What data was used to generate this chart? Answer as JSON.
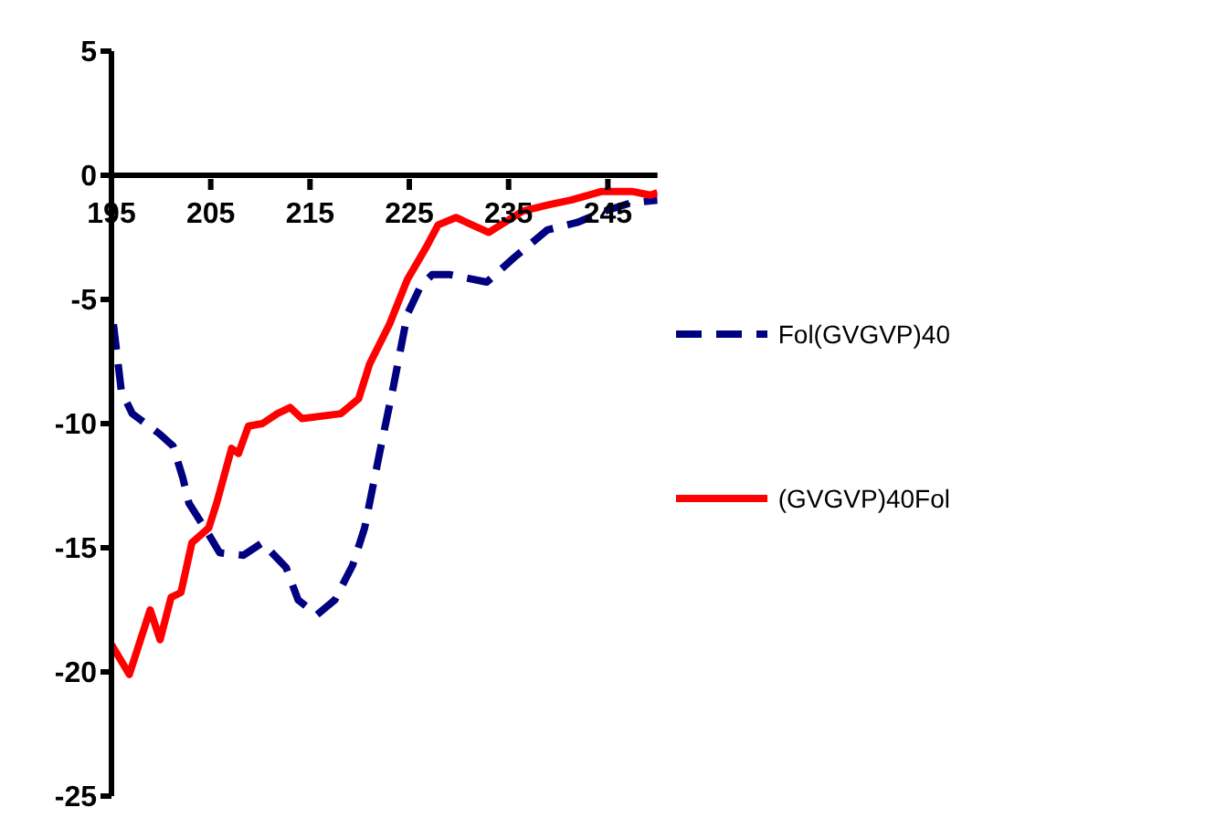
{
  "chart_data": {
    "type": "line",
    "xlim": [
      195,
      250
    ],
    "xticks": [
      195,
      205,
      215,
      225,
      235,
      245
    ],
    "ylim": [
      -25,
      5
    ],
    "yticks": [
      -25,
      -20,
      -15,
      -10,
      -5,
      0,
      5
    ],
    "legend": "right",
    "marker": "none",
    "series": [
      {
        "name": "Fol(GVGVP)40",
        "color": "#000080",
        "line_style": "dashed",
        "x": [
          195.2,
          196,
          197.1,
          199.8,
          201.2,
          202.2,
          202.8,
          204.7,
          205.9,
          208.3,
          210.2,
          212.6,
          213.8,
          215.7,
          217.5,
          219.3,
          220.5,
          222.1,
          223.4,
          224.8,
          226.1,
          227.3,
          229.1,
          232.8,
          235.6,
          238.9,
          241.9,
          245,
          247.4,
          250
        ],
        "values": [
          -6,
          -8.7,
          -9.6,
          -10.4,
          -10.9,
          -12.2,
          -13.2,
          -14.4,
          -15.2,
          -15.3,
          -14.8,
          -15.8,
          -17.1,
          -17.7,
          -17.1,
          -15.7,
          -14.2,
          -11,
          -8.5,
          -5.6,
          -4.5,
          -4,
          -4,
          -4.3,
          -3.3,
          -2.2,
          -1.9,
          -1.4,
          -1.1,
          -1
        ]
      },
      {
        "name": "(GVGVP)40Fol",
        "color": "#ff0000",
        "line_style": "solid",
        "x": [
          195,
          196.8,
          198.9,
          199.9,
          201,
          202,
          203.1,
          204.8,
          205.6,
          207.1,
          207.8,
          208.8,
          210.2,
          211.7,
          213,
          214.2,
          218.1,
          219.9,
          221,
          223,
          224.8,
          226.7,
          227.9,
          229.7,
          233,
          236.4,
          238.9,
          241.3,
          244.4,
          247.4,
          249.3,
          250
        ],
        "values": [
          -18.9,
          -20.1,
          -17.5,
          -18.7,
          -17,
          -16.8,
          -14.8,
          -14.2,
          -13.2,
          -11,
          -11.2,
          -10.1,
          -10,
          -9.6,
          -9.35,
          -9.8,
          -9.6,
          -9,
          -7.6,
          -6,
          -4.2,
          -2.9,
          -2,
          -1.7,
          -2.3,
          -1.45,
          -1.2,
          -1,
          -0.65,
          -0.65,
          -0.8,
          -0.7
        ]
      }
    ]
  }
}
